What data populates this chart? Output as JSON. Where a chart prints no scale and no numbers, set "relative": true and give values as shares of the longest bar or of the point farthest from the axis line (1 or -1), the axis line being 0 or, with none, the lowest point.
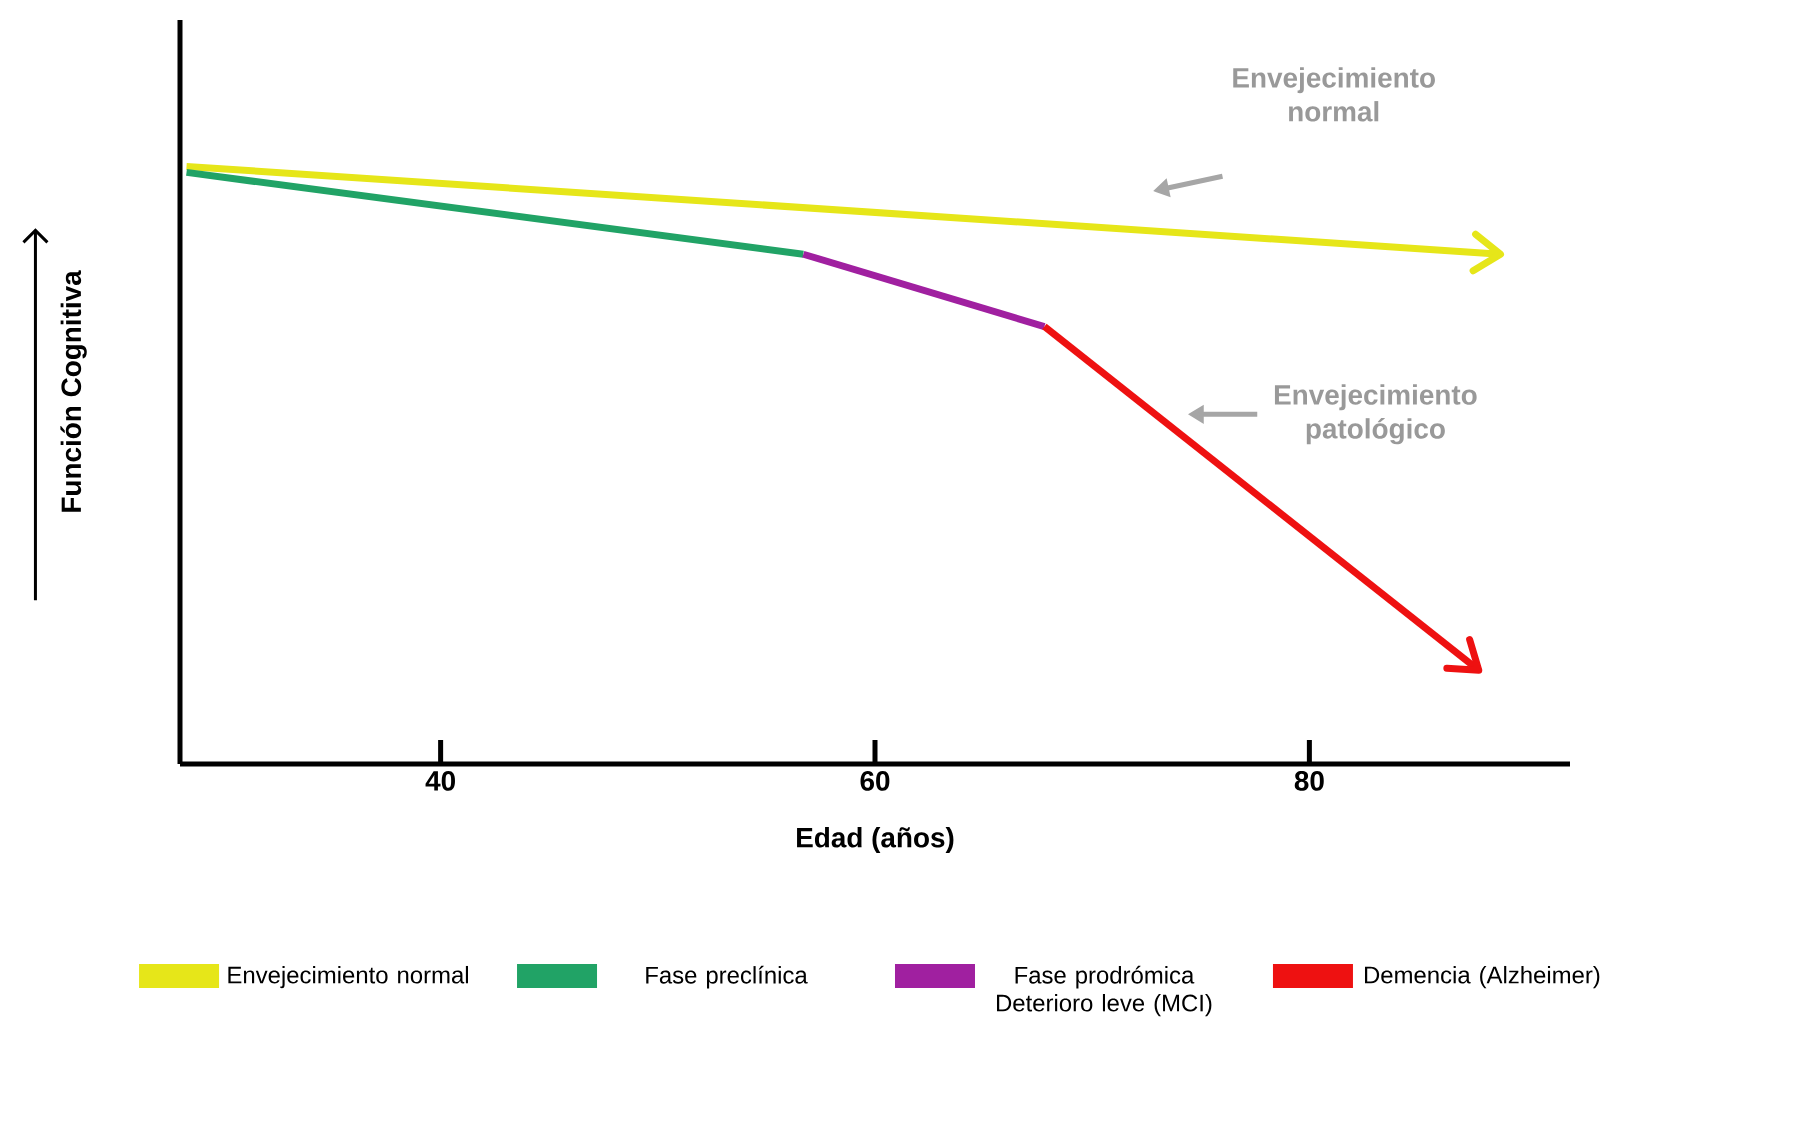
{
  "chart_data": {
    "type": "line",
    "relative": true,
    "xlabel": "Edad (años)",
    "ylabel": "Función Cognitiva",
    "xlim": [
      28,
      92
    ],
    "xticks": [
      40,
      60,
      80
    ],
    "legend": "bottom",
    "marker": "none",
    "line_style": "solid",
    "series": [
      {
        "name": "Envejecimiento normal",
        "color": "#e6e619",
        "x": [
          28.3,
          88.8
        ],
        "values": [
          1,
          0.853
        ]
      },
      {
        "name": "Fase preclínica",
        "color": "#21a366",
        "x": [
          28.3,
          56.7
        ],
        "values": [
          0.99,
          0.853
        ]
      },
      {
        "name": "Fase prodrómica Deterioro leve (MCI)",
        "color": "#a020a0",
        "x": [
          56.7,
          67.8
        ],
        "values": [
          0.853,
          0.732
        ]
      },
      {
        "name": "Demencia (Alzheimer)",
        "color": "#ee1111",
        "x": [
          67.8,
          87.8
        ],
        "values": [
          0.732,
          0.157
        ]
      }
    ],
    "annotations": [
      "Envejecimiento normal",
      "Envejecimiento patológico"
    ]
  }
}
